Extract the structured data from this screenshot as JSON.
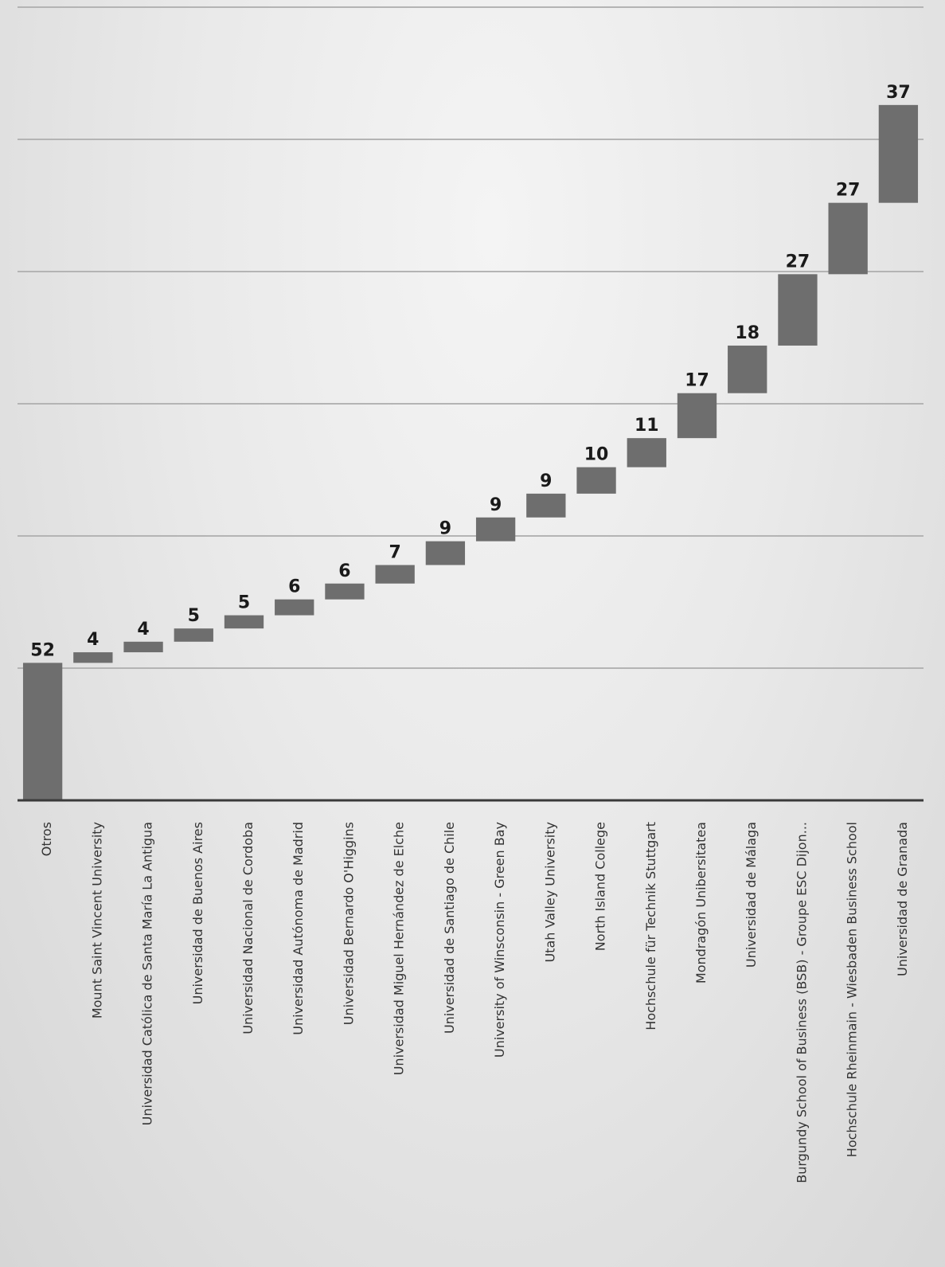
{
  "chart_data": {
    "type": "bar",
    "subtype": "waterfall",
    "title": "",
    "xlabel": "",
    "ylabel": "",
    "ylim": [
      0,
      300
    ],
    "grid": true,
    "legend": "none",
    "colors": {
      "bar": "#6e6e6e",
      "grid": "#b4b4b4",
      "axis": "#3a3a3a",
      "label": "#1a1a1a"
    },
    "categories": [
      "Otros",
      "Mount Saint Vincent University",
      "Universidad Católica de Santa María La Antigua",
      "Universidad de Buenos Aires",
      "Universidad Nacional de Cordoba",
      "Universidad Autónoma de Madrid",
      "Universidad Bernardo O'Higgins",
      "Universidad Miguel Hernández de Elche",
      "Universidad de Santiago de Chile",
      "University of Winsconsin - Green Bay",
      "Utah Valley University",
      "North Island College",
      "Hochschule für Technik Stuttgart",
      "Mondragón Unibersitatea",
      "Universidad de Málaga",
      "Burgundy School of Business (BSB) - Groupe ESC Dijon...",
      "Hochschule Rheinmain - Wiesbaden Business School",
      "Universidad de Granada"
    ],
    "values": [
      52,
      4,
      4,
      5,
      5,
      6,
      6,
      7,
      9,
      9,
      9,
      10,
      11,
      17,
      18,
      27,
      27,
      37
    ],
    "data_labels": [
      "52",
      "4",
      "4",
      "5",
      "5",
      "6",
      "6",
      "7",
      "9",
      "9",
      "9",
      "10",
      "11",
      "17",
      "18",
      "27",
      "27",
      "37"
    ]
  }
}
